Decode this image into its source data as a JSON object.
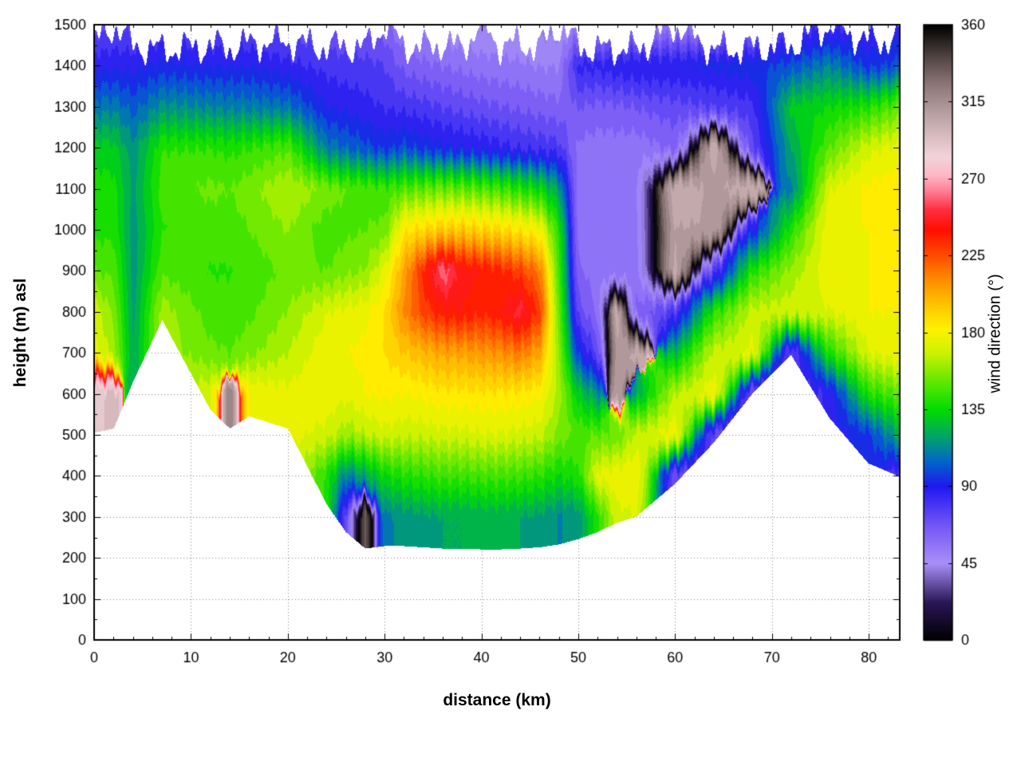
{
  "page": {
    "background": "#ffffff"
  },
  "axes": {
    "xlabel": "distance (km)",
    "ylabel": "height (m) asl",
    "cblabel": "wind direction (°)",
    "x_ticks": [
      0,
      10,
      20,
      30,
      40,
      50,
      60,
      70,
      80
    ],
    "x_minor_step": 2,
    "y_ticks": [
      0,
      100,
      200,
      300,
      400,
      500,
      600,
      700,
      800,
      900,
      1000,
      1100,
      1200,
      1300,
      1400,
      1500
    ],
    "y_minor_step": 50,
    "cb_ticks": [
      0,
      45,
      90,
      135,
      180,
      225,
      270,
      315,
      360
    ],
    "x_range": [
      0,
      83.2
    ],
    "y_range": [
      0,
      1500
    ],
    "cb_range": [
      0,
      360
    ]
  },
  "chart_data": {
    "type": "heatmap",
    "title": "",
    "xlabel": "distance (km)",
    "ylabel": "height (m) asl",
    "value_label": "wind direction (°)",
    "value_range_deg": [
      0,
      360
    ],
    "band_step_deg": 7.5,
    "x_km": [
      0,
      2,
      4,
      7,
      12,
      14,
      16,
      20,
      24,
      26,
      28,
      30,
      32,
      34,
      36,
      38,
      40,
      42,
      44,
      46,
      48,
      50,
      52,
      54,
      56,
      60,
      64,
      68,
      72,
      76,
      80,
      83
    ],
    "z_m": [
      0,
      100,
      200,
      300,
      400,
      500,
      600,
      700,
      800,
      900,
      1000,
      1100,
      1200,
      1300,
      1400,
      1500
    ],
    "terrain_m": [
      505,
      515,
      630,
      780,
      560,
      515,
      545,
      515,
      330,
      262,
      222,
      228,
      228,
      225,
      222,
      222,
      220,
      220,
      222,
      225,
      232,
      245,
      262,
      285,
      300,
      380,
      480,
      600,
      695,
      540,
      430,
      400
    ],
    "top_m": [
      1455,
      1500,
      1450,
      1440,
      1450,
      1445,
      1455,
      1460,
      1445,
      1450,
      1445,
      1500,
      1450,
      1445,
      1455,
      1445,
      1500,
      1450,
      1455,
      1445,
      1500,
      1450,
      1440,
      1445,
      1440,
      1500,
      1440,
      1445,
      1450,
      1500,
      1460,
      1465
    ],
    "values_deg": [
      [
        null,
        null,
        null,
        null,
        null,
        null,
        290,
        175,
        170,
        150,
        140,
        138,
        132,
        108,
        88,
        70
      ],
      [
        null,
        null,
        null,
        null,
        null,
        null,
        295,
        162,
        155,
        148,
        140,
        138,
        130,
        110,
        88,
        74
      ],
      [
        null,
        null,
        null,
        null,
        null,
        null,
        null,
        120,
        118,
        116,
        116,
        118,
        115,
        102,
        88,
        72
      ],
      [
        null,
        null,
        null,
        null,
        null,
        null,
        null,
        null,
        162,
        148,
        142,
        146,
        142,
        115,
        92,
        75
      ],
      [
        null,
        null,
        null,
        null,
        null,
        null,
        172,
        152,
        146,
        142,
        146,
        152,
        142,
        112,
        90,
        72
      ],
      [
        null,
        null,
        null,
        null,
        null,
        null,
        322,
        150,
        145,
        142,
        146,
        150,
        140,
        110,
        90,
        72
      ],
      [
        null,
        null,
        null,
        null,
        null,
        null,
        180,
        155,
        148,
        145,
        150,
        155,
        142,
        110,
        90,
        72
      ],
      [
        null,
        null,
        null,
        null,
        null,
        null,
        175,
        165,
        158,
        152,
        158,
        165,
        148,
        108,
        85,
        70
      ],
      [
        null,
        null,
        null,
        null,
        140,
        170,
        178,
        178,
        172,
        150,
        145,
        155,
        110,
        90,
        80,
        68
      ],
      [
        null,
        null,
        null,
        70,
        110,
        160,
        175,
        180,
        175,
        155,
        148,
        150,
        105,
        88,
        78,
        66
      ],
      [
        null,
        null,
        null,
        335,
        120,
        165,
        180,
        182,
        178,
        158,
        150,
        148,
        100,
        85,
        78,
        65
      ],
      [
        null,
        null,
        null,
        110,
        135,
        170,
        182,
        188,
        188,
        175,
        152,
        145,
        95,
        82,
        75,
        63
      ],
      [
        null,
        null,
        null,
        115,
        140,
        168,
        180,
        195,
        212,
        205,
        185,
        148,
        100,
        80,
        65,
        50
      ],
      [
        null,
        null,
        null,
        118,
        142,
        168,
        182,
        200,
        228,
        235,
        190,
        150,
        95,
        78,
        62,
        48
      ],
      [
        null,
        null,
        null,
        120,
        145,
        170,
        185,
        205,
        238,
        262,
        195,
        152,
        92,
        75,
        60,
        46
      ],
      [
        null,
        null,
        null,
        120,
        145,
        170,
        185,
        205,
        240,
        243,
        195,
        150,
        90,
        72,
        58,
        45
      ],
      [
        null,
        null,
        null,
        122,
        146,
        172,
        186,
        208,
        235,
        240,
        192,
        148,
        88,
        70,
        56,
        44
      ],
      [
        null,
        null,
        null,
        122,
        146,
        172,
        186,
        210,
        240,
        235,
        190,
        145,
        85,
        68,
        55,
        44
      ],
      [
        null,
        null,
        null,
        120,
        145,
        170,
        185,
        215,
        252,
        228,
        185,
        140,
        82,
        66,
        54,
        43
      ],
      [
        null,
        null,
        null,
        118,
        142,
        168,
        182,
        205,
        230,
        215,
        180,
        135,
        80,
        64,
        52,
        42
      ],
      [
        null,
        null,
        null,
        112,
        135,
        155,
        162,
        158,
        152,
        146,
        140,
        118,
        78,
        62,
        52,
        42
      ],
      [
        null,
        null,
        null,
        115,
        140,
        148,
        130,
        95,
        72,
        62,
        57,
        55,
        58,
        68,
        85,
        52
      ],
      [
        null,
        null,
        null,
        140,
        175,
        150,
        115,
        72,
        58,
        55,
        55,
        54,
        56,
        65,
        85,
        50
      ],
      [
        null,
        null,
        null,
        170,
        178,
        150,
        310,
        312,
        300,
        60,
        55,
        54,
        56,
        66,
        88,
        50
      ],
      [
        null,
        null,
        null,
        172,
        180,
        168,
        120,
        305,
        62,
        56,
        54,
        53,
        55,
        68,
        90,
        50
      ],
      [
        null,
        null,
        null,
        null,
        70,
        178,
        165,
        125,
        78,
        305,
        308,
        300,
        62,
        72,
        90,
        52
      ],
      [
        null,
        null,
        null,
        null,
        null,
        72,
        178,
        168,
        140,
        75,
        308,
        310,
        302,
        75,
        92,
        52
      ],
      [
        null,
        null,
        null,
        null,
        null,
        null,
        68,
        175,
        168,
        140,
        90,
        300,
        72,
        80,
        95,
        55
      ],
      [
        null,
        null,
        null,
        null,
        null,
        null,
        null,
        72,
        170,
        160,
        140,
        110,
        120,
        130,
        100,
        75
      ],
      [
        null,
        null,
        null,
        null,
        null,
        null,
        85,
        140,
        172,
        178,
        180,
        172,
        150,
        135,
        112,
        80
      ],
      [
        null,
        null,
        null,
        null,
        null,
        95,
        140,
        172,
        180,
        180,
        180,
        182,
        170,
        140,
        95,
        80
      ],
      [
        null,
        null,
        null,
        null,
        75,
        120,
        150,
        178,
        180,
        180,
        182,
        185,
        175,
        150,
        100,
        85
      ]
    ],
    "colormap_stops": [
      [
        0,
        "#000000"
      ],
      [
        22,
        "#2a1655"
      ],
      [
        45,
        "#a890f8"
      ],
      [
        65,
        "#7a5cf5"
      ],
      [
        90,
        "#2018f0"
      ],
      [
        105,
        "#0068c8"
      ],
      [
        118,
        "#00a070"
      ],
      [
        135,
        "#00dc00"
      ],
      [
        152,
        "#66e800"
      ],
      [
        168,
        "#ccf200"
      ],
      [
        182,
        "#fff200"
      ],
      [
        198,
        "#ffbf00"
      ],
      [
        212,
        "#ff8800"
      ],
      [
        226,
        "#ff4800"
      ],
      [
        240,
        "#ff0f00"
      ],
      [
        252,
        "#ff2e40"
      ],
      [
        263,
        "#ff7f95"
      ],
      [
        272,
        "#ffb6c6"
      ],
      [
        283,
        "#f2d4da"
      ],
      [
        295,
        "#d8bcc0"
      ],
      [
        310,
        "#b49c9e"
      ],
      [
        326,
        "#8a7474"
      ],
      [
        342,
        "#4e4240"
      ],
      [
        360,
        "#000000"
      ]
    ],
    "legend_position": "right-colorbar",
    "grid": "dotted-major"
  }
}
